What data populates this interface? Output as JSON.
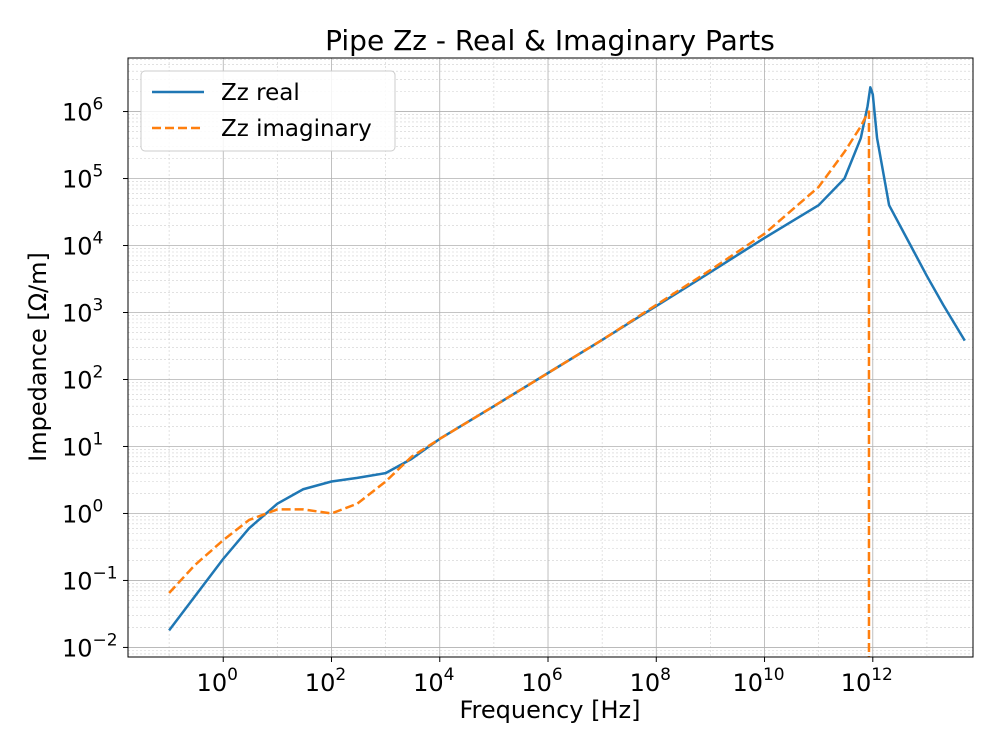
{
  "chart_data": {
    "type": "line",
    "title": "Pipe Zz - Real & Imaginary Parts",
    "xlabel": "Frequency [Hz]",
    "ylabel": "Impedance [Ω/m]",
    "xscale": "log",
    "yscale": "log",
    "xlim": [
      0.0174,
      71000000000000.0
    ],
    "ylim": [
      0.0072,
      6300000.0
    ],
    "xticks": [
      {
        "base": "10",
        "exp": "0",
        "value": 1
      },
      {
        "base": "10",
        "exp": "2",
        "value": 100
      },
      {
        "base": "10",
        "exp": "4",
        "value": 10000
      },
      {
        "base": "10",
        "exp": "6",
        "value": 1000000
      },
      {
        "base": "10",
        "exp": "8",
        "value": 100000000
      },
      {
        "base": "10",
        "exp": "10",
        "value": 10000000000
      },
      {
        "base": "10",
        "exp": "12",
        "value": 1000000000000
      }
    ],
    "yticks": [
      {
        "base": "10",
        "exp": "−2",
        "value": 0.01
      },
      {
        "base": "10",
        "exp": "−1",
        "value": 0.1
      },
      {
        "base": "10",
        "exp": "0",
        "value": 1
      },
      {
        "base": "10",
        "exp": "1",
        "value": 10
      },
      {
        "base": "10",
        "exp": "2",
        "value": 100
      },
      {
        "base": "10",
        "exp": "3",
        "value": 1000
      },
      {
        "base": "10",
        "exp": "4",
        "value": 10000
      },
      {
        "base": "10",
        "exp": "5",
        "value": 100000
      },
      {
        "base": "10",
        "exp": "6",
        "value": 1000000
      }
    ],
    "grid": true,
    "minor_grid": true,
    "legend_position": "top-left",
    "series": [
      {
        "name": "Zz real",
        "color": "#1f77b4",
        "style": "solid",
        "x": [
          0.1,
          1,
          3,
          10,
          30,
          100,
          300,
          1000,
          3000,
          10000,
          100000,
          1000000,
          10000000,
          100000000,
          1000000000,
          10000000000,
          100000000000,
          300000000000,
          600000000000,
          800000000000,
          900000000000,
          1000000000000,
          1200000000000,
          2000000000000,
          5000000000000,
          10000000000000,
          20000000000000,
          50000000000000
        ],
        "y": [
          0.018,
          0.21,
          0.6,
          1.4,
          2.3,
          3.0,
          3.4,
          4.0,
          6.5,
          13,
          40,
          125,
          390,
          1250,
          4000,
          13000,
          40000,
          100000,
          400000,
          1200000,
          2300000,
          1800000,
          400000,
          40000,
          10000,
          3500,
          1300,
          380
        ]
      },
      {
        "name": "Zz imaginary",
        "color": "#ff7f0e",
        "style": "dashed",
        "x": [
          0.1,
          0.3,
          1,
          3,
          10,
          30,
          100,
          300,
          1000,
          3000,
          10000,
          100000,
          1000000,
          10000000,
          100000000,
          1000000000,
          10000000000,
          100000000000,
          300000000000,
          600000000000,
          800000000000,
          850000000000,
          850000000000
        ],
        "y": [
          0.065,
          0.17,
          0.4,
          0.8,
          1.15,
          1.15,
          1.0,
          1.4,
          3.0,
          7.0,
          13,
          40,
          125,
          390,
          1300,
          4300,
          15000,
          75000,
          250000,
          600000,
          950000,
          1000000,
          0.0072
        ]
      }
    ]
  }
}
